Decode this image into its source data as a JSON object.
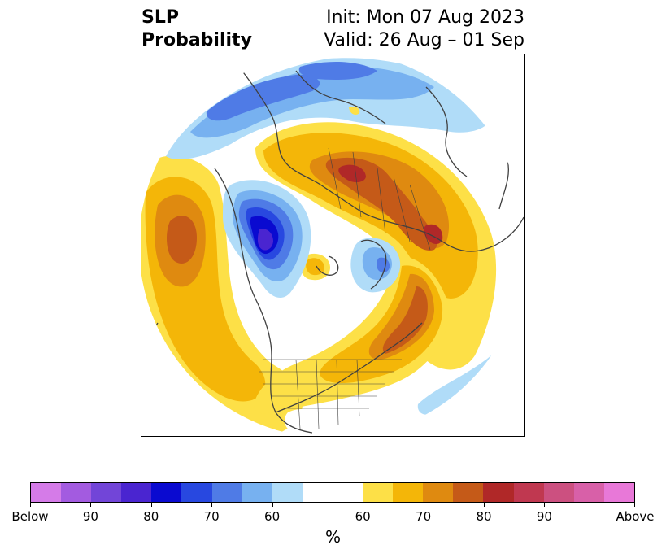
{
  "title": {
    "left_line1": "SLP",
    "left_line2": "Probability",
    "right_line1": "Init: Mon 07 Aug 2023",
    "right_line2": "Valid: 26 Aug – 01 Sep"
  },
  "colorbar": {
    "unit": "%",
    "labels": [
      "Below",
      "90",
      "80",
      "70",
      "60",
      "60",
      "70",
      "80",
      "90",
      "Above"
    ],
    "below_colors": [
      "#d57be8",
      "#a35be0",
      "#7245d8",
      "#4a25d0",
      "#0a0ad0",
      "#2848e0",
      "#4f7be6",
      "#77b1f0",
      "#b0dcf8"
    ],
    "neutral_color": "#ffffff",
    "above_colors": [
      "#fde047",
      "#f4b608",
      "#df8a10",
      "#c55a18",
      "#b02828",
      "#c03850",
      "#cc5080",
      "#d860a8",
      "#e878d8"
    ]
  },
  "colors": {
    "land_outline": "#404040",
    "frame": "#000000"
  }
}
